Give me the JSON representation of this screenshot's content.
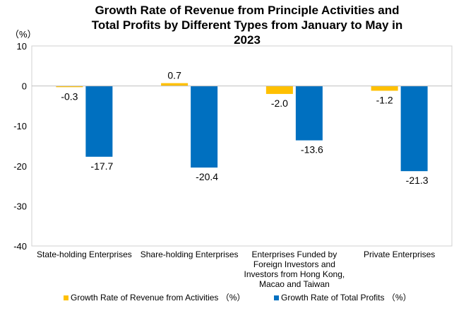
{
  "chart_data": {
    "type": "bar",
    "title_lines": [
      "Growth Rate of Revenue from Principle Activities and",
      "Total Profits by Different Types from January to May in",
      "2023"
    ],
    "unit_label": "（%）",
    "categories": [
      [
        "State-holding Enterprises"
      ],
      [
        "Share-holding Enterprises"
      ],
      [
        "Enterprises Funded by",
        "Foreign Investors and",
        "Investors from Hong Kong,",
        "Macao and Taiwan"
      ],
      [
        "Private Enterprises"
      ]
    ],
    "series": [
      {
        "name": "Growth Rate of Revenue from Activities （%）",
        "color": "#FFC000",
        "values": [
          -0.3,
          0.7,
          -2.0,
          -1.2
        ],
        "labels": [
          "-0.3",
          "0.7",
          "-2.0",
          "-1.2"
        ]
      },
      {
        "name": "Growth Rate of Total Profits （%）",
        "color": "#0070C0",
        "values": [
          -17.7,
          -20.4,
          -13.6,
          -21.3
        ],
        "labels": [
          "-17.7",
          "-20.4",
          "-13.6",
          "-21.3"
        ]
      }
    ],
    "yticks": [
      "10",
      "0",
      "-10",
      "-20",
      "-30",
      "-40"
    ],
    "ylim": [
      -40,
      10
    ],
    "grid": false,
    "legend_position": "bottom"
  }
}
